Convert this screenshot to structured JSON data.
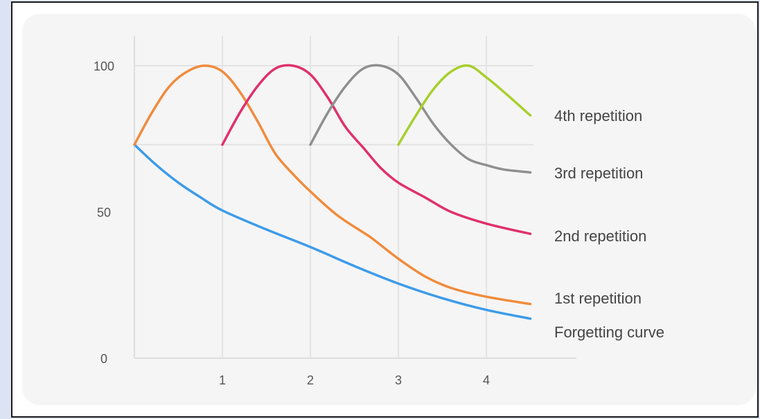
{
  "chart_data": {
    "type": "line",
    "title": "",
    "xlabel": "",
    "ylabel": "",
    "xlim": [
      0,
      4.5
    ],
    "ylim": [
      0,
      100
    ],
    "x_ticks": [
      1,
      2,
      3,
      4
    ],
    "y_ticks": [
      0,
      50,
      100
    ],
    "grid": {
      "vertical": true,
      "horizontal_lines_at": [
        100,
        73
      ]
    },
    "legend": "labels at right end of each line",
    "series": [
      {
        "name": "Forgetting curve",
        "color": "#3d9be9",
        "x": [
          0,
          0.25,
          0.5,
          0.75,
          1,
          1.5,
          2,
          2.5,
          3,
          3.5,
          4,
          4.5
        ],
        "y": [
          73,
          66,
          60,
          55,
          50.5,
          44,
          38,
          31.5,
          25.5,
          20.5,
          16.5,
          13.5
        ]
      },
      {
        "name": "1st repetition",
        "color": "#f08b3c",
        "x": [
          0,
          0.2,
          0.4,
          0.6,
          0.8,
          1.0,
          1.2,
          1.4,
          1.6,
          1.8,
          2.0,
          2.3,
          2.6,
          2.7,
          3.0,
          3.3,
          3.6,
          4.0,
          4.5
        ],
        "y": [
          73,
          84,
          93,
          98,
          100,
          98,
          91,
          81,
          70,
          63,
          57,
          49,
          43,
          41,
          34,
          28,
          24,
          21,
          18.5
        ]
      },
      {
        "name": "2nd repetition",
        "color": "#e0306a",
        "x": [
          1,
          1.2,
          1.4,
          1.6,
          1.8,
          2.0,
          2.2,
          2.4,
          2.6,
          2.8,
          3.0,
          3.3,
          3.6,
          4.0,
          4.5
        ],
        "y": [
          73,
          84,
          93,
          99,
          100,
          97,
          89,
          79,
          72,
          65,
          60,
          55,
          50,
          46,
          42.5
        ]
      },
      {
        "name": "3rd repetition",
        "color": "#8f8f8f",
        "x": [
          2,
          2.2,
          2.4,
          2.6,
          2.8,
          3.0,
          3.2,
          3.4,
          3.6,
          3.8,
          4.0,
          4.2,
          4.5
        ],
        "y": [
          73,
          84,
          93,
          99,
          100,
          97,
          89,
          80,
          73,
          68,
          66,
          64.5,
          63.5
        ]
      },
      {
        "name": "4th repetition",
        "color": "#a8cf2c",
        "x": [
          3,
          3.2,
          3.4,
          3.6,
          3.8,
          4.0,
          4.2,
          4.5
        ],
        "y": [
          73,
          83,
          92,
          98,
          100,
          96,
          91,
          83
        ]
      }
    ]
  }
}
